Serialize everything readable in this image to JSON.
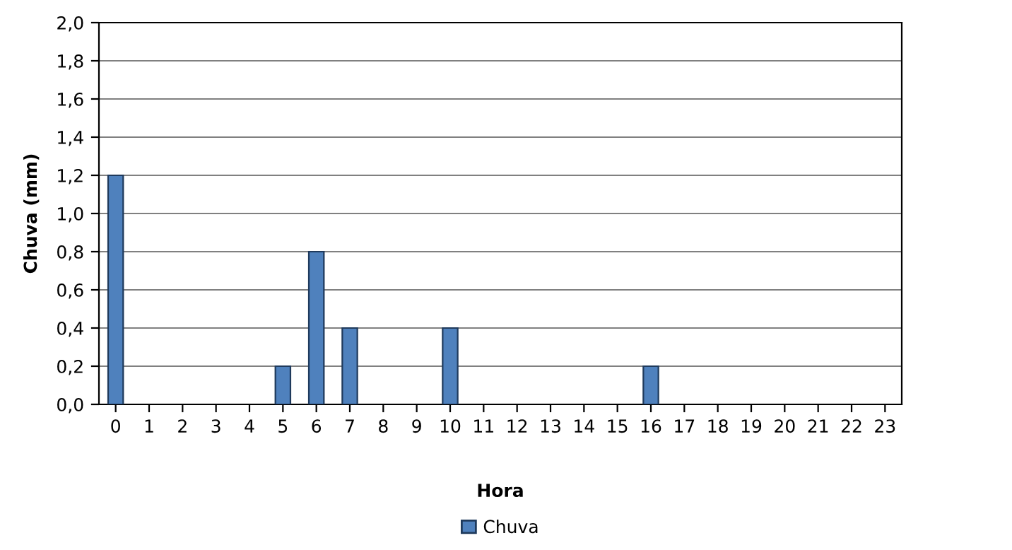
{
  "chart_data": {
    "type": "bar",
    "xlabel": "Hora",
    "ylabel": "Chuva (mm)",
    "categories": [
      "0",
      "1",
      "2",
      "3",
      "4",
      "5",
      "6",
      "7",
      "8",
      "9",
      "10",
      "11",
      "12",
      "13",
      "14",
      "15",
      "16",
      "17",
      "18",
      "19",
      "20",
      "21",
      "22",
      "23"
    ],
    "series": [
      {
        "name": "Chuva",
        "color": "#4f81bd",
        "values": [
          1.2,
          0,
          0,
          0,
          0,
          0.2,
          0.8,
          0.4,
          0,
          0,
          0.4,
          0,
          0,
          0,
          0,
          0,
          0.2,
          0,
          0,
          0,
          0,
          0,
          0,
          0
        ]
      }
    ],
    "ylim": [
      0,
      2.0
    ],
    "yticks": [
      {
        "value": 0,
        "label": "0,0"
      },
      {
        "value": 0.2,
        "label": "0,2"
      },
      {
        "value": 0.4,
        "label": "0,4"
      },
      {
        "value": 0.6,
        "label": "0,6"
      },
      {
        "value": 0.8,
        "label": "0,8"
      },
      {
        "value": 1.0,
        "label": "1,0"
      },
      {
        "value": 1.2,
        "label": "1,2"
      },
      {
        "value": 1.4,
        "label": "1,4"
      },
      {
        "value": 1.6,
        "label": "1,6"
      },
      {
        "value": 1.8,
        "label": "1,8"
      },
      {
        "value": 2.0,
        "label": "2,0"
      }
    ],
    "grid": "y",
    "legend": "bottom"
  }
}
